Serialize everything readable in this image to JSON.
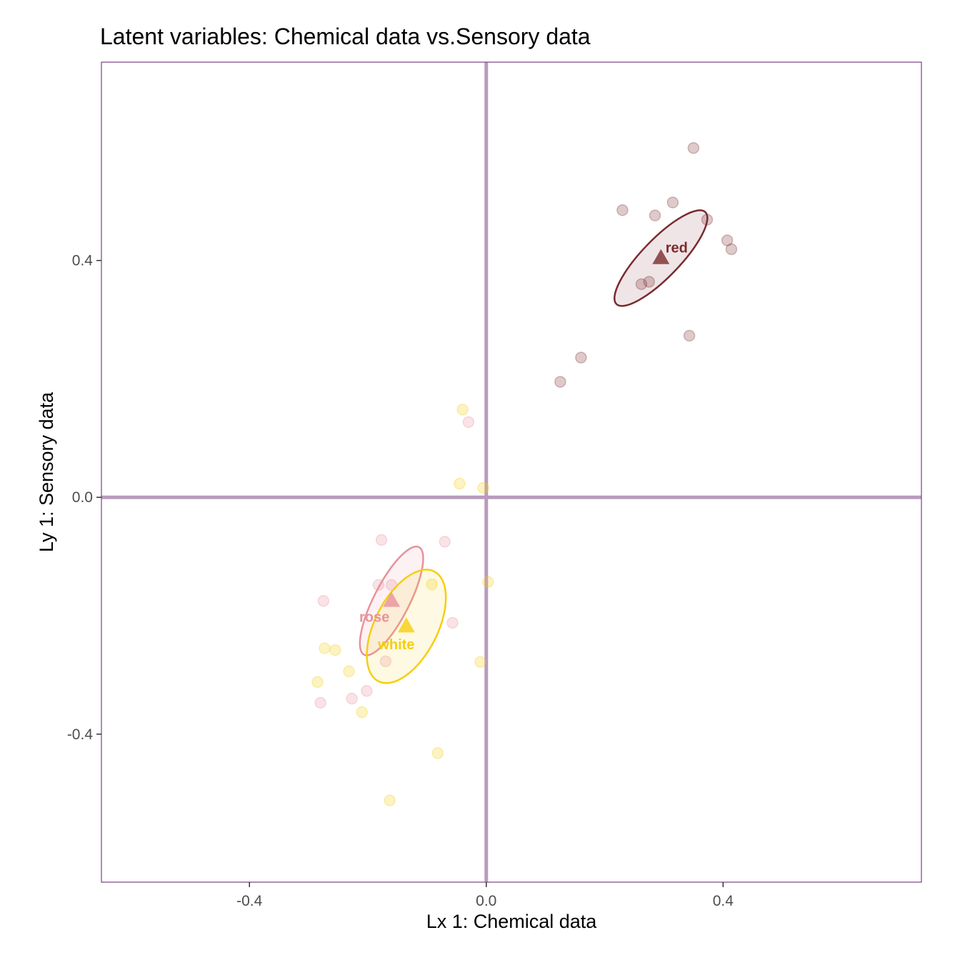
{
  "chart_data": {
    "type": "scatter",
    "title": "Latent variables: Chemical data vs.Sensory data",
    "xlabel": "Lx 1: Chemical data",
    "ylabel": "Ly 1: Sensory data",
    "xlim": [
      -0.65,
      0.735
    ],
    "ylim": [
      -0.65,
      0.735
    ],
    "x_ticks": [
      -0.4,
      0.0,
      0.4
    ],
    "x_tick_labels": [
      "-0.4",
      "0.0",
      "0.4"
    ],
    "y_ticks": [
      -0.4,
      0.0,
      0.4
    ],
    "y_tick_labels": [
      "-0.4",
      "0.0",
      "0.4"
    ],
    "grid": false,
    "reference_lines": {
      "x": 0,
      "y": 0,
      "color": "#b99bbd"
    },
    "frame_color": "#7b3f86",
    "series": [
      {
        "name": "red",
        "color": "#7a2a2e",
        "points": [
          {
            "x": 0.35,
            "y": 0.59
          },
          {
            "x": 0.23,
            "y": 0.485
          },
          {
            "x": 0.285,
            "y": 0.476
          },
          {
            "x": 0.315,
            "y": 0.498
          },
          {
            "x": 0.373,
            "y": 0.469
          },
          {
            "x": 0.407,
            "y": 0.434
          },
          {
            "x": 0.414,
            "y": 0.419
          },
          {
            "x": 0.262,
            "y": 0.36
          },
          {
            "x": 0.275,
            "y": 0.364
          },
          {
            "x": 0.343,
            "y": 0.273
          },
          {
            "x": 0.16,
            "y": 0.236
          },
          {
            "x": 0.125,
            "y": 0.195
          }
        ],
        "centroid": {
          "x": 0.295,
          "y": 0.404
        },
        "ellipse": {
          "rx": 0.032,
          "ry": 0.108,
          "angle_deg": 44
        }
      },
      {
        "name": "rose",
        "color": "#e8919b",
        "points": [
          {
            "x": -0.03,
            "y": 0.127
          },
          {
            "x": -0.177,
            "y": -0.072
          },
          {
            "x": -0.07,
            "y": -0.075
          },
          {
            "x": -0.182,
            "y": -0.148
          },
          {
            "x": -0.16,
            "y": -0.148
          },
          {
            "x": -0.275,
            "y": -0.175
          },
          {
            "x": -0.057,
            "y": -0.212
          },
          {
            "x": -0.17,
            "y": -0.277
          },
          {
            "x": -0.202,
            "y": -0.327
          },
          {
            "x": -0.227,
            "y": -0.34
          },
          {
            "x": -0.28,
            "y": -0.347
          }
        ],
        "centroid": {
          "x": -0.16,
          "y": -0.175
        },
        "ellipse": {
          "rx": 0.03,
          "ry": 0.102,
          "angle_deg": 27
        }
      },
      {
        "name": "white",
        "color": "#f5ce0f",
        "points": [
          {
            "x": -0.04,
            "y": 0.148
          },
          {
            "x": -0.045,
            "y": 0.023
          },
          {
            "x": -0.005,
            "y": 0.016
          },
          {
            "x": 0.003,
            "y": -0.143
          },
          {
            "x": -0.092,
            "y": -0.147
          },
          {
            "x": -0.273,
            "y": -0.255
          },
          {
            "x": -0.255,
            "y": -0.258
          },
          {
            "x": -0.232,
            "y": -0.294
          },
          {
            "x": -0.285,
            "y": -0.312
          },
          {
            "x": -0.01,
            "y": -0.278
          },
          {
            "x": -0.21,
            "y": -0.363
          },
          {
            "x": -0.082,
            "y": -0.432
          },
          {
            "x": -0.163,
            "y": -0.512
          }
        ],
        "centroid": {
          "x": -0.135,
          "y": -0.218
        },
        "ellipse": {
          "rx": 0.053,
          "ry": 0.104,
          "angle_deg": 27
        }
      }
    ]
  }
}
